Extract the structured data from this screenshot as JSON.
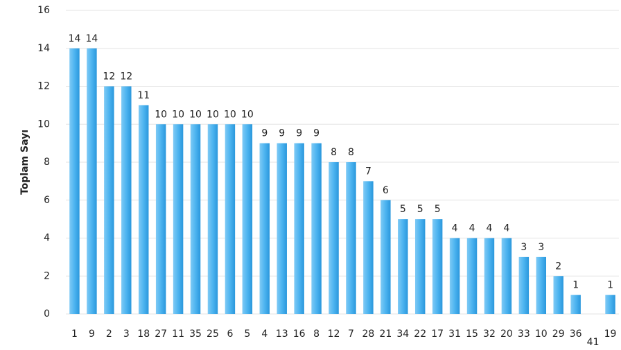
{
  "chart_data": {
    "type": "bar",
    "y_label": "Toplam Sayı",
    "categories": [
      "1",
      "9",
      "2",
      "3",
      "18",
      "27",
      "11",
      "35",
      "25",
      "6",
      "5",
      "4",
      "13",
      "16",
      "8",
      "12",
      "7",
      "28",
      "21",
      "34",
      "22",
      "17",
      "31",
      "15",
      "32",
      "20",
      "33",
      "10",
      "29",
      "36",
      "41",
      "19"
    ],
    "values": [
      14,
      14,
      12,
      12,
      11,
      10,
      10,
      10,
      10,
      10,
      10,
      9,
      9,
      9,
      9,
      8,
      8,
      7,
      6,
      5,
      5,
      5,
      4,
      4,
      4,
      4,
      3,
      3,
      2,
      1,
      null,
      1
    ],
    "color": "#3aa8ea",
    "ylim": [
      0,
      16
    ],
    "yticks": [
      0,
      2,
      4,
      6,
      8,
      10,
      12,
      14,
      16
    ],
    "grid": true
  }
}
